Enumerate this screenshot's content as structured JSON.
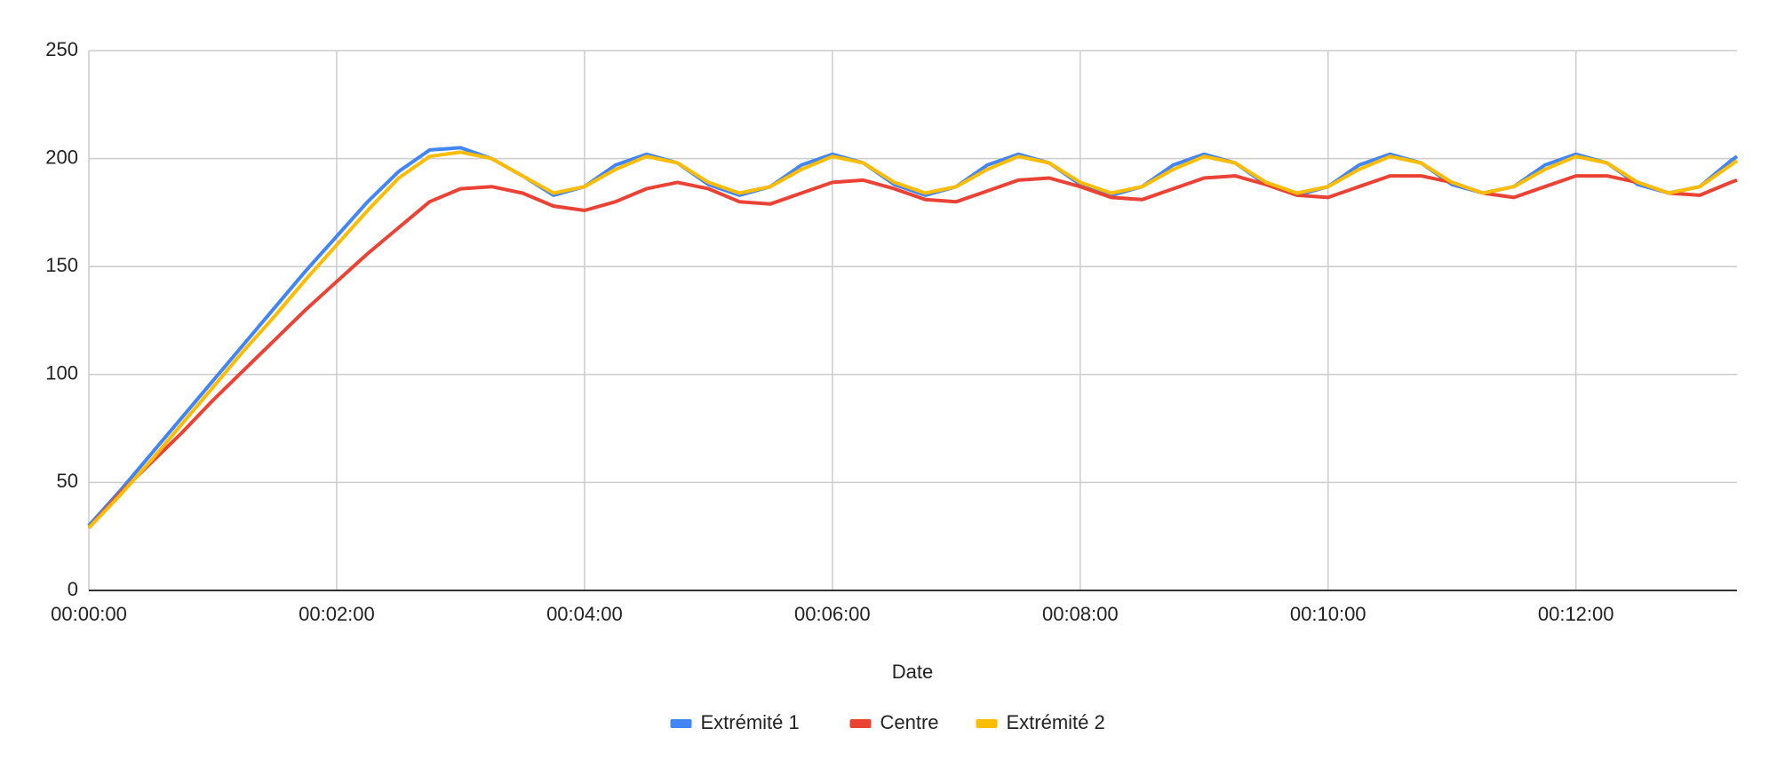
{
  "chart_data": {
    "type": "line",
    "x_label": "Date",
    "x": [
      0,
      15,
      30,
      45,
      60,
      75,
      90,
      105,
      120,
      135,
      150,
      165,
      180,
      195,
      210,
      225,
      240,
      255,
      270,
      285,
      300,
      315,
      330,
      345,
      360,
      375,
      390,
      405,
      420,
      435,
      450,
      465,
      480,
      495,
      510,
      525,
      540,
      555,
      570,
      585,
      600,
      615,
      630,
      645,
      660,
      675,
      690,
      705,
      720,
      735,
      750,
      765,
      780,
      795,
      798
    ],
    "series": [
      {
        "name": "Extrémité 1",
        "color": "#4285f4",
        "values": [
          30,
          46,
          63,
          80,
          97,
          114,
          131,
          148,
          164,
          180,
          194,
          204,
          205,
          200,
          192,
          183,
          187,
          197,
          202,
          198,
          188,
          183,
          187,
          197,
          202,
          198,
          188,
          183,
          187,
          197,
          202,
          198,
          188,
          183,
          187,
          197,
          202,
          198,
          188,
          183,
          187,
          197,
          202,
          198,
          188,
          184,
          187,
          197,
          202,
          198,
          188,
          184,
          187,
          199,
          201
        ]
      },
      {
        "name": "Centre",
        "color": "#ea4335",
        "values": [
          29,
          45,
          59,
          73,
          88,
          102,
          116,
          130,
          143,
          156,
          168,
          180,
          186,
          187,
          184,
          178,
          176,
          180,
          186,
          189,
          186,
          180,
          179,
          184,
          189,
          190,
          186,
          181,
          180,
          185,
          190,
          191,
          187,
          182,
          181,
          186,
          191,
          192,
          188,
          183,
          182,
          187,
          192,
          192,
          189,
          184,
          182,
          187,
          192,
          192,
          189,
          184,
          183,
          189,
          190
        ]
      },
      {
        "name": "Extrémité 2",
        "color": "#fbbc04",
        "values": [
          29,
          44,
          60,
          77,
          94,
          111,
          127,
          144,
          160,
          176,
          191,
          201,
          203,
          200,
          192,
          184,
          187,
          195,
          201,
          198,
          189,
          184,
          187,
          195,
          201,
          198,
          189,
          184,
          187,
          195,
          201,
          198,
          189,
          184,
          187,
          195,
          201,
          198,
          189,
          184,
          187,
          195,
          201,
          198,
          189,
          184,
          187,
          195,
          201,
          198,
          189,
          184,
          187,
          197,
          199
        ]
      }
    ],
    "xlim": [
      0,
      798
    ],
    "xticks": [
      {
        "value": 0,
        "label": "00:00:00"
      },
      {
        "value": 120,
        "label": "00:02:00"
      },
      {
        "value": 240,
        "label": "00:04:00"
      },
      {
        "value": 360,
        "label": "00:06:00"
      },
      {
        "value": 480,
        "label": "00:08:00"
      },
      {
        "value": 600,
        "label": "00:10:00"
      },
      {
        "value": 720,
        "label": "00:12:00"
      }
    ],
    "ylim": [
      0,
      250
    ],
    "yticks": [
      0,
      50,
      100,
      150,
      200,
      250
    ],
    "grid": true,
    "legend": "bottom"
  }
}
